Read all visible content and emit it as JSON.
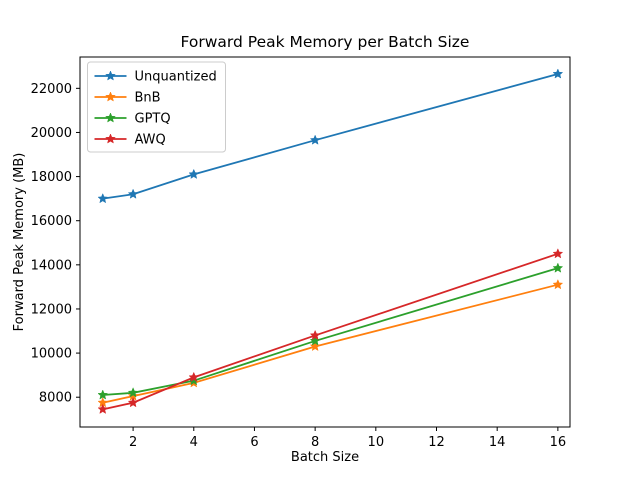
{
  "figure": {
    "background": "#ffffff"
  },
  "chart_data": {
    "type": "line",
    "title": "Forward Peak Memory per Batch Size",
    "xlabel": "Batch Size",
    "ylabel": "Forward Peak Memory (MB)",
    "x": [
      1,
      2,
      4,
      8,
      16
    ],
    "series": [
      {
        "name": "Unquantized",
        "color": "#1f77b4",
        "values": [
          17000,
          17200,
          18100,
          19650,
          22650
        ]
      },
      {
        "name": "BnB",
        "color": "#ff7f0e",
        "values": [
          7750,
          8050,
          8650,
          10300,
          13100
        ]
      },
      {
        "name": "GPTQ",
        "color": "#2ca02c",
        "values": [
          8100,
          8200,
          8750,
          10550,
          13850
        ]
      },
      {
        "name": "AWQ",
        "color": "#d62728",
        "values": [
          7450,
          7750,
          8900,
          10800,
          14500
        ]
      }
    ],
    "x_ticks": [
      2,
      4,
      6,
      8,
      10,
      12,
      14,
      16
    ],
    "y_ticks": [
      8000,
      10000,
      12000,
      14000,
      16000,
      18000,
      20000,
      22000
    ],
    "x_range": [
      0.25,
      16.4
    ],
    "y_range": [
      6650,
      23420
    ],
    "marker": "star",
    "grid": false,
    "legend_position": "upper left",
    "axis_color": "#000000",
    "legend_border_color": "#cccccc"
  }
}
